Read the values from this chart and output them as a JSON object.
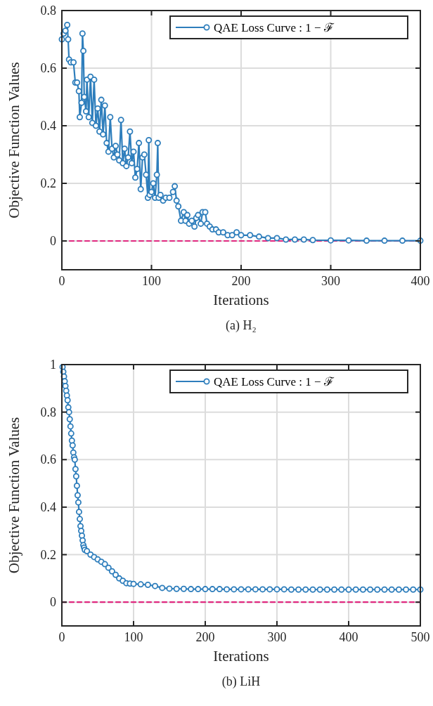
{
  "chart_data": [
    {
      "type": "line",
      "xlabel": "Iterations",
      "ylabel": "Objective Function Values",
      "annotations": [
        "(a) H₂"
      ],
      "xlim": [
        0,
        400
      ],
      "xticks": [
        0,
        100,
        200,
        300,
        400
      ],
      "ylim": [
        -0.1,
        0.8
      ],
      "yticks": [
        0,
        0.2,
        0.4,
        0.6,
        0.8
      ],
      "grid": true,
      "legend": "top right",
      "marker": "circle",
      "line_style": "solid",
      "series": [
        {
          "name": "QAE Loss Curve : 1 − ℱ",
          "color": "#2e7ebc",
          "x": [
            0,
            2,
            4,
            6,
            7,
            8,
            10,
            13,
            15,
            17,
            19,
            20,
            22,
            23,
            24,
            25,
            27,
            28,
            30,
            32,
            34,
            36,
            38,
            40,
            42,
            44,
            46,
            48,
            50,
            52,
            54,
            56,
            58,
            60,
            62,
            64,
            66,
            68,
            70,
            72,
            74,
            76,
            78,
            80,
            82,
            84,
            86,
            88,
            90,
            92,
            94,
            96,
            97,
            98,
            100,
            102,
            104,
            106,
            107,
            108,
            110,
            113,
            116,
            120,
            124,
            126,
            128,
            130,
            133,
            136,
            138,
            140,
            142,
            145,
            148,
            150,
            152,
            155,
            157,
            160,
            162,
            165,
            168,
            172,
            175,
            180,
            185,
            190,
            195,
            200,
            210,
            220,
            230,
            240,
            250,
            260,
            270,
            280,
            300,
            320,
            340,
            360,
            380,
            400
          ],
          "values": [
            0.7,
            0.72,
            0.73,
            0.75,
            0.7,
            0.63,
            0.62,
            0.62,
            0.55,
            0.55,
            0.52,
            0.43,
            0.48,
            0.72,
            0.66,
            0.5,
            0.45,
            0.56,
            0.43,
            0.57,
            0.41,
            0.56,
            0.4,
            0.46,
            0.38,
            0.49,
            0.37,
            0.47,
            0.34,
            0.31,
            0.43,
            0.32,
            0.29,
            0.33,
            0.3,
            0.28,
            0.42,
            0.27,
            0.32,
            0.26,
            0.29,
            0.38,
            0.27,
            0.31,
            0.22,
            0.25,
            0.34,
            0.18,
            0.29,
            0.3,
            0.23,
            0.15,
            0.35,
            0.16,
            0.17,
            0.2,
            0.15,
            0.23,
            0.34,
            0.15,
            0.16,
            0.14,
            0.15,
            0.15,
            0.17,
            0.19,
            0.14,
            0.12,
            0.07,
            0.1,
            0.07,
            0.09,
            0.06,
            0.07,
            0.05,
            0.08,
            0.09,
            0.06,
            0.1,
            0.1,
            0.06,
            0.05,
            0.04,
            0.04,
            0.03,
            0.03,
            0.02,
            0.02,
            0.03,
            0.02,
            0.02,
            0.015,
            0.01,
            0.01,
            0.005,
            0.005,
            0.005,
            0.003,
            0.002,
            0.002,
            0.001,
            0.001,
            0.001,
            0.001
          ]
        },
        {
          "type": "line",
          "color": "#e0287f",
          "line_style": "dashed",
          "marker": "none",
          "x": [
            0,
            400
          ],
          "values": [
            0,
            0
          ]
        }
      ]
    },
    {
      "type": "line",
      "xlabel": "Iterations",
      "ylabel": "Objective Function Values",
      "annotations": [
        "(b) LiH"
      ],
      "xlim": [
        0,
        500
      ],
      "xticks": [
        0,
        100,
        200,
        300,
        400,
        500
      ],
      "ylim": [
        -0.1,
        1
      ],
      "yticks": [
        0,
        0.2,
        0.4,
        0.6,
        0.8,
        1
      ],
      "grid": true,
      "legend": "top right",
      "marker": "circle",
      "line_style": "solid",
      "series": [
        {
          "name": "QAE Loss Curve : 1 − ℱ",
          "color": "#2e7ebc",
          "x": [
            1,
            2,
            3,
            4,
            5,
            6,
            7,
            8,
            9,
            10,
            11,
            12,
            13,
            14,
            15,
            16,
            17,
            18,
            19,
            20,
            21,
            22,
            23,
            24,
            25,
            26,
            27,
            28,
            29,
            30,
            31,
            32,
            35,
            40,
            45,
            50,
            55,
            60,
            65,
            70,
            75,
            80,
            85,
            90,
            95,
            100,
            110,
            120,
            130,
            140,
            150,
            160,
            170,
            180,
            190,
            200,
            210,
            220,
            230,
            240,
            250,
            260,
            270,
            280,
            290,
            300,
            310,
            320,
            330,
            340,
            350,
            360,
            370,
            380,
            390,
            400,
            410,
            420,
            430,
            440,
            450,
            460,
            470,
            480,
            490,
            500
          ],
          "values": [
            0.99,
            0.97,
            0.95,
            0.93,
            0.91,
            0.89,
            0.87,
            0.85,
            0.82,
            0.8,
            0.77,
            0.74,
            0.71,
            0.68,
            0.66,
            0.63,
            0.61,
            0.6,
            0.56,
            0.53,
            0.49,
            0.45,
            0.42,
            0.38,
            0.35,
            0.32,
            0.3,
            0.28,
            0.26,
            0.24,
            0.23,
            0.22,
            0.215,
            0.2,
            0.19,
            0.18,
            0.17,
            0.16,
            0.145,
            0.13,
            0.115,
            0.1,
            0.09,
            0.08,
            0.078,
            0.077,
            0.075,
            0.073,
            0.068,
            0.06,
            0.057,
            0.056,
            0.056,
            0.055,
            0.055,
            0.055,
            0.055,
            0.055,
            0.054,
            0.054,
            0.054,
            0.054,
            0.054,
            0.054,
            0.054,
            0.054,
            0.054,
            0.053,
            0.053,
            0.053,
            0.053,
            0.053,
            0.053,
            0.053,
            0.053,
            0.053,
            0.053,
            0.053,
            0.053,
            0.053,
            0.053,
            0.053,
            0.053,
            0.053,
            0.053,
            0.053
          ]
        },
        {
          "type": "line",
          "color": "#e0287f",
          "line_style": "dashed",
          "marker": "none",
          "x": [
            0,
            500
          ],
          "values": [
            0,
            0
          ]
        }
      ]
    }
  ]
}
